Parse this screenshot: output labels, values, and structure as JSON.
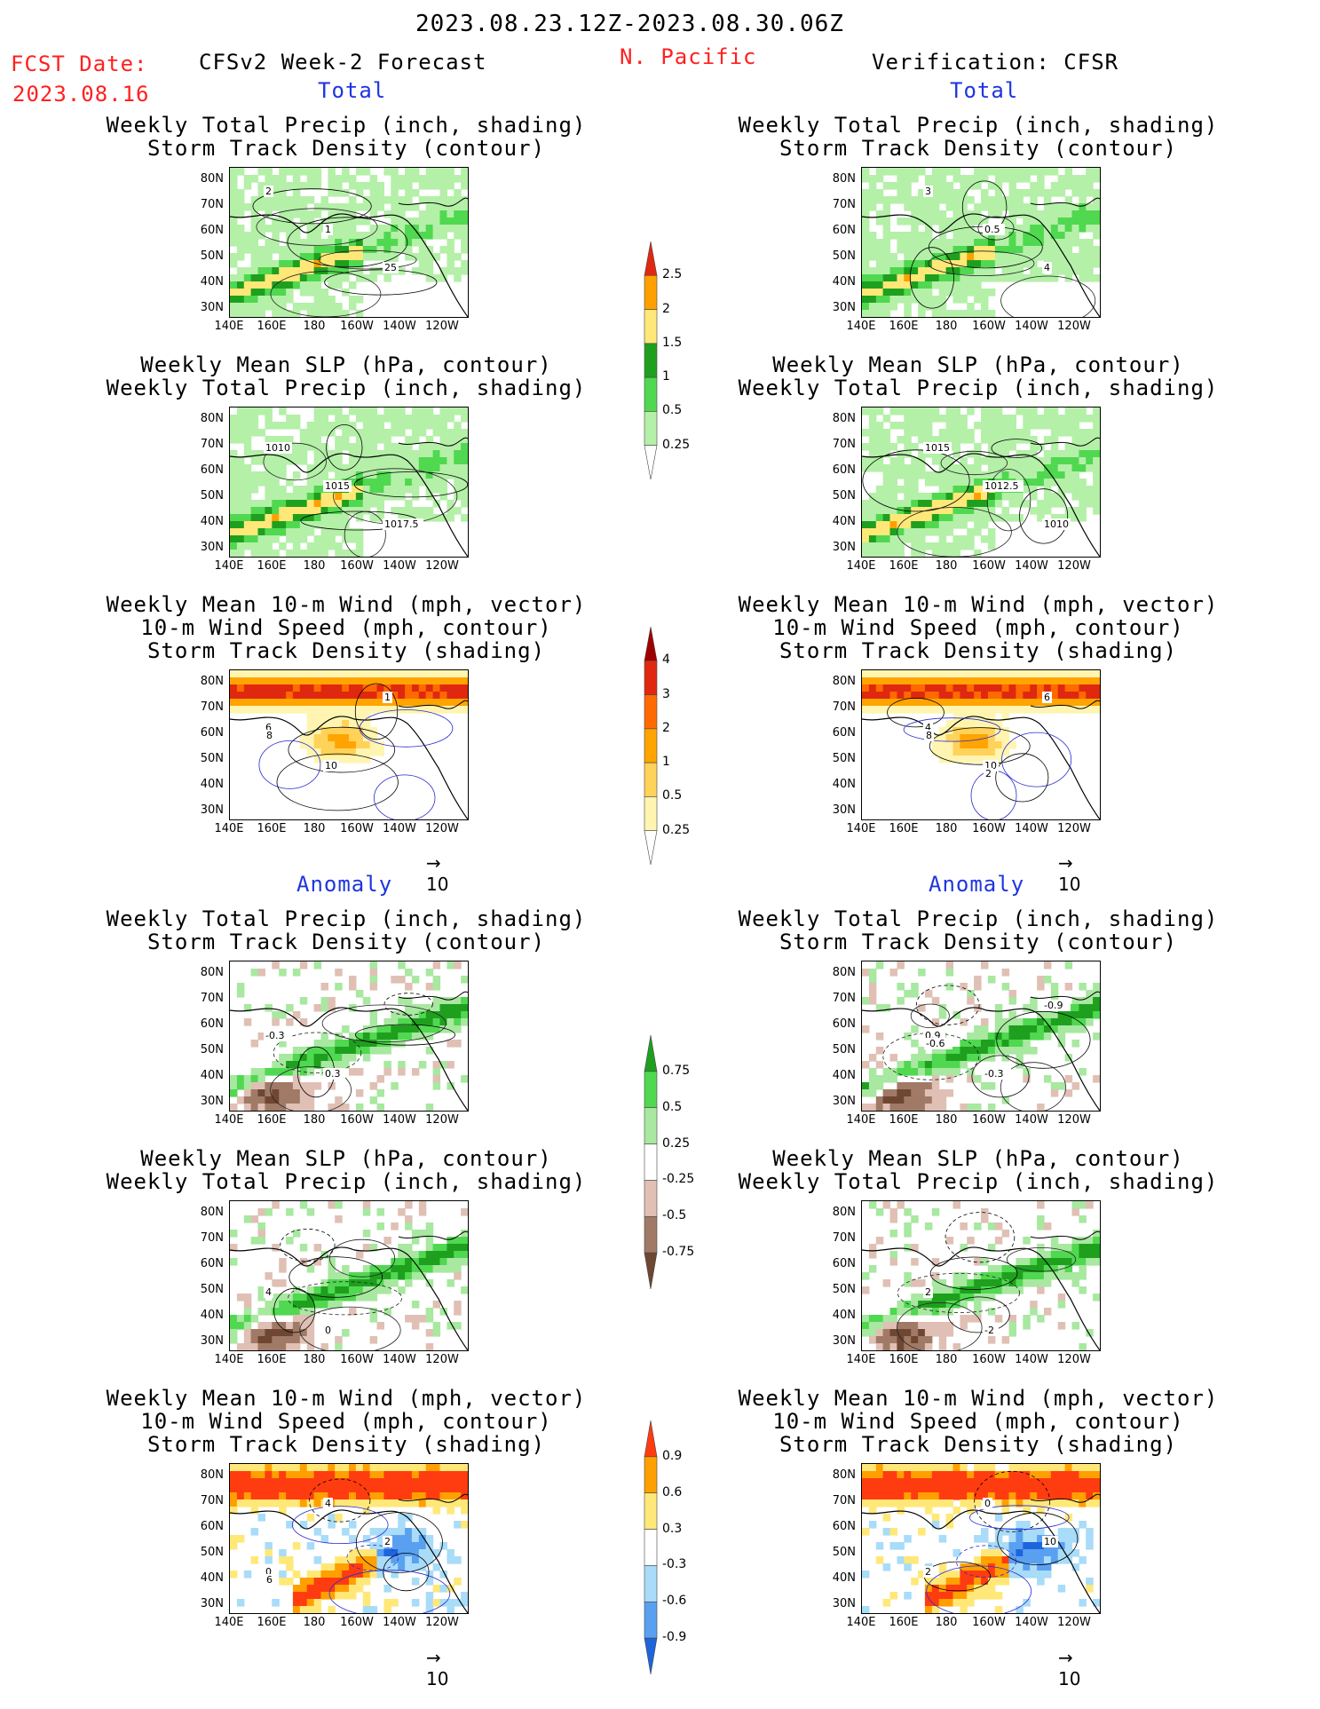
{
  "header": {
    "date_range": "2023.08.23.12Z-2023.08.30.06Z",
    "fcst_label": "FCST Date:",
    "fcst_date": "2023.08.16",
    "forecast_title": "CFSv2 Week-2 Forecast",
    "region": "N. Pacific",
    "verification_title": "Verification: CFSR"
  },
  "sections": {
    "total": "Total",
    "anomaly": "Anomaly"
  },
  "titles": {
    "precip_storm": [
      "Weekly Total Precip (inch, shading)",
      "Storm Track Density (contour)"
    ],
    "slp_precip": [
      "Weekly Mean SLP (hPa, contour)",
      "Weekly Total Precip (inch, shading)"
    ],
    "wind_storm": [
      "Weekly Mean 10-m Wind (mph, vector)",
      "10-m Wind Speed (mph, contour)",
      "Storm Track Density (shading)"
    ]
  },
  "axes": {
    "y_ticks": [
      "80N",
      "70N",
      "60N",
      "50N",
      "40N",
      "30N"
    ],
    "x_ticks": [
      "140E",
      "160E",
      "180",
      "160W",
      "140W",
      "120W"
    ]
  },
  "vector_ref": "10",
  "chart_data": [
    {
      "type": "colorbar",
      "name": "total_precip",
      "ticks": [
        "0.25",
        "0.5",
        "1",
        "1.5",
        "2",
        "2.5"
      ],
      "colors": [
        "#ffffff",
        "#b4f0a8",
        "#50d850",
        "#1ea01e",
        "#ffe878",
        "#ffa000",
        "#e02810"
      ]
    },
    {
      "type": "colorbar",
      "name": "total_storm_density",
      "ticks": [
        "0.25",
        "0.5",
        "1",
        "2",
        "3",
        "4"
      ],
      "colors": [
        "#ffffff",
        "#fff5b0",
        "#ffd25a",
        "#ffa400",
        "#ff6a00",
        "#e02810",
        "#a00000"
      ]
    },
    {
      "type": "colorbar",
      "name": "anomaly_precip",
      "ticks": [
        "-0.75",
        "-0.5",
        "-0.25",
        "0.25",
        "0.5",
        "0.75"
      ],
      "colors": [
        "#6e4632",
        "#a07a66",
        "#e0c0b4",
        "#ffffff",
        "#a8e8a0",
        "#50d850",
        "#1ea01e"
      ]
    },
    {
      "type": "colorbar",
      "name": "anomaly_storm_density",
      "ticks": [
        "-0.9",
        "-0.6",
        "-0.3",
        "0.3",
        "0.6",
        "0.9"
      ],
      "colors": [
        "#1e64dc",
        "#5aa0f0",
        "#a8dcf8",
        "#ffffff",
        "#ffe878",
        "#ffa000",
        "#ff3c10"
      ]
    },
    {
      "type": "map_panel",
      "id": "f_total_precip",
      "contour_labels": [
        "2",
        "1",
        "25"
      ]
    },
    {
      "type": "map_panel",
      "id": "f_total_slp",
      "contour_labels": [
        "1010",
        "1015",
        "1017.5"
      ]
    },
    {
      "type": "map_panel",
      "id": "f_total_wind",
      "contour_labels": [
        "6",
        "10",
        "1",
        "8"
      ]
    },
    {
      "type": "map_panel",
      "id": "v_total_precip",
      "contour_labels": [
        "3",
        "0.5",
        "4"
      ]
    },
    {
      "type": "map_panel",
      "id": "v_total_slp",
      "contour_labels": [
        "1015",
        "1012.5",
        "1010"
      ]
    },
    {
      "type": "map_panel",
      "id": "v_total_wind",
      "contour_labels": [
        "4",
        "10",
        "6",
        "8",
        "2"
      ]
    },
    {
      "type": "map_panel",
      "id": "f_anom_precip",
      "contour_labels": [
        "-0.3",
        "0.3"
      ]
    },
    {
      "type": "map_panel",
      "id": "f_anom_slp",
      "contour_labels": [
        "4",
        "0"
      ]
    },
    {
      "type": "map_panel",
      "id": "f_anom_wind",
      "contour_labels": [
        "0",
        "4",
        "2",
        "6"
      ]
    },
    {
      "type": "map_panel",
      "id": "v_anom_precip",
      "contour_labels": [
        "0.9",
        "-0.3",
        "-0.9",
        "-0.6"
      ]
    },
    {
      "type": "map_panel",
      "id": "v_anom_slp",
      "contour_labels": [
        "2",
        "-2"
      ]
    },
    {
      "type": "map_panel",
      "id": "v_anom_wind",
      "contour_labels": [
        "2",
        "0",
        "10"
      ]
    }
  ]
}
